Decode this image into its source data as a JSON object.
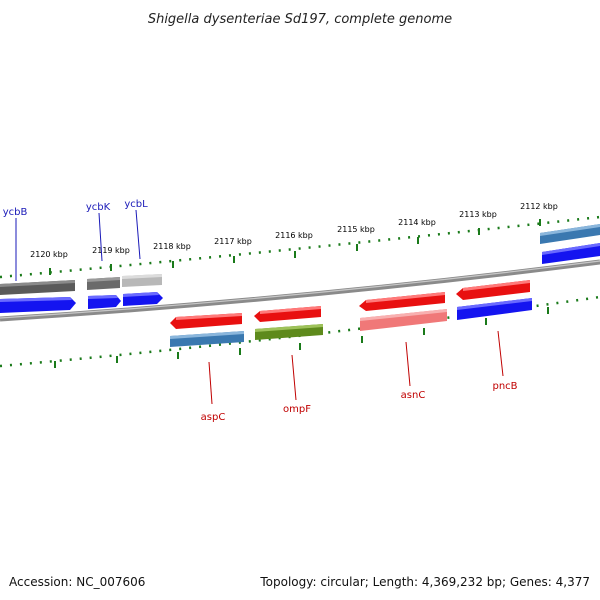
{
  "header": {
    "title": "Shigella dysenteriae Sd197, complete genome"
  },
  "footer": {
    "accession": "Accession: NC_007606",
    "summary": "Topology: circular; Length: 4,369,232 bp; Genes: 4,377"
  },
  "scale": {
    "tick_labels": [
      "2120 kbp",
      "2119 kbp",
      "2118 kbp",
      "2117 kbp",
      "2116 kbp",
      "2115 kbp",
      "2114 kbp",
      "2113 kbp",
      "2112 kbp"
    ]
  },
  "genes_top": [
    {
      "label": "ycbB"
    },
    {
      "label": "ycbK"
    },
    {
      "label": "ycbL"
    }
  ],
  "genes_bottom": [
    {
      "label": "aspC"
    },
    {
      "label": "ompF"
    },
    {
      "label": "asnC"
    },
    {
      "label": "pncB"
    }
  ],
  "colors": {
    "backbone": "#8a8a8a",
    "tick_green": "#1a7a1a",
    "gene_red": "#e81010",
    "gene_blue": "#1414f0",
    "steel_blue": "#3a78b0",
    "olive": "#5e8a1c",
    "salmon": "#f07878",
    "dark_grey": "#5a5a5a",
    "mid_grey": "#7a7a7a",
    "light_grey": "#b8b8b8",
    "label_blue": "#1a1ab8",
    "label_red": "#c00000"
  }
}
